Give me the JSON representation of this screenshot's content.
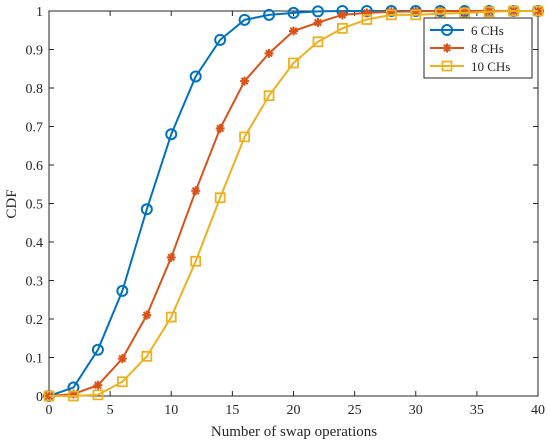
{
  "chart_data": {
    "type": "line",
    "xlabel": "Number of swap operations",
    "ylabel": "CDF",
    "xlim": [
      0,
      40
    ],
    "ylim": [
      0,
      1
    ],
    "x_ticks": [
      0,
      5,
      10,
      15,
      20,
      25,
      30,
      35,
      40
    ],
    "y_ticks": [
      0,
      0.1,
      0.2,
      0.3,
      0.4,
      0.5,
      0.6,
      0.7,
      0.8,
      0.9,
      1
    ],
    "grid": false,
    "legend_position": "top-right",
    "x": [
      0,
      2,
      4,
      6,
      8,
      10,
      12,
      14,
      16,
      18,
      20,
      22,
      24,
      26,
      28,
      30,
      32,
      34,
      36,
      38,
      40
    ],
    "series": [
      {
        "name": "6 CHs",
        "color": "#0072BD",
        "marker": "circle",
        "values": [
          0,
          0.022,
          0.12,
          0.273,
          0.485,
          0.68,
          0.83,
          0.925,
          0.977,
          0.99,
          0.995,
          0.999,
          1,
          1,
          1,
          1,
          1,
          1,
          1,
          1,
          1
        ]
      },
      {
        "name": "8 CHs",
        "color": "#D95319",
        "marker": "asterisk",
        "values": [
          0,
          0.005,
          0.028,
          0.097,
          0.21,
          0.36,
          0.533,
          0.695,
          0.818,
          0.89,
          0.948,
          0.97,
          0.99,
          0.995,
          0.998,
          0.999,
          1,
          1,
          1,
          1,
          1
        ]
      },
      {
        "name": "10 CHs",
        "color": "#EDB120",
        "marker": "square",
        "values": [
          0,
          0,
          0.003,
          0.037,
          0.103,
          0.205,
          0.35,
          0.515,
          0.673,
          0.78,
          0.865,
          0.92,
          0.955,
          0.978,
          0.99,
          0.99,
          0.993,
          0.995,
          0.998,
          1,
          1
        ]
      }
    ]
  }
}
